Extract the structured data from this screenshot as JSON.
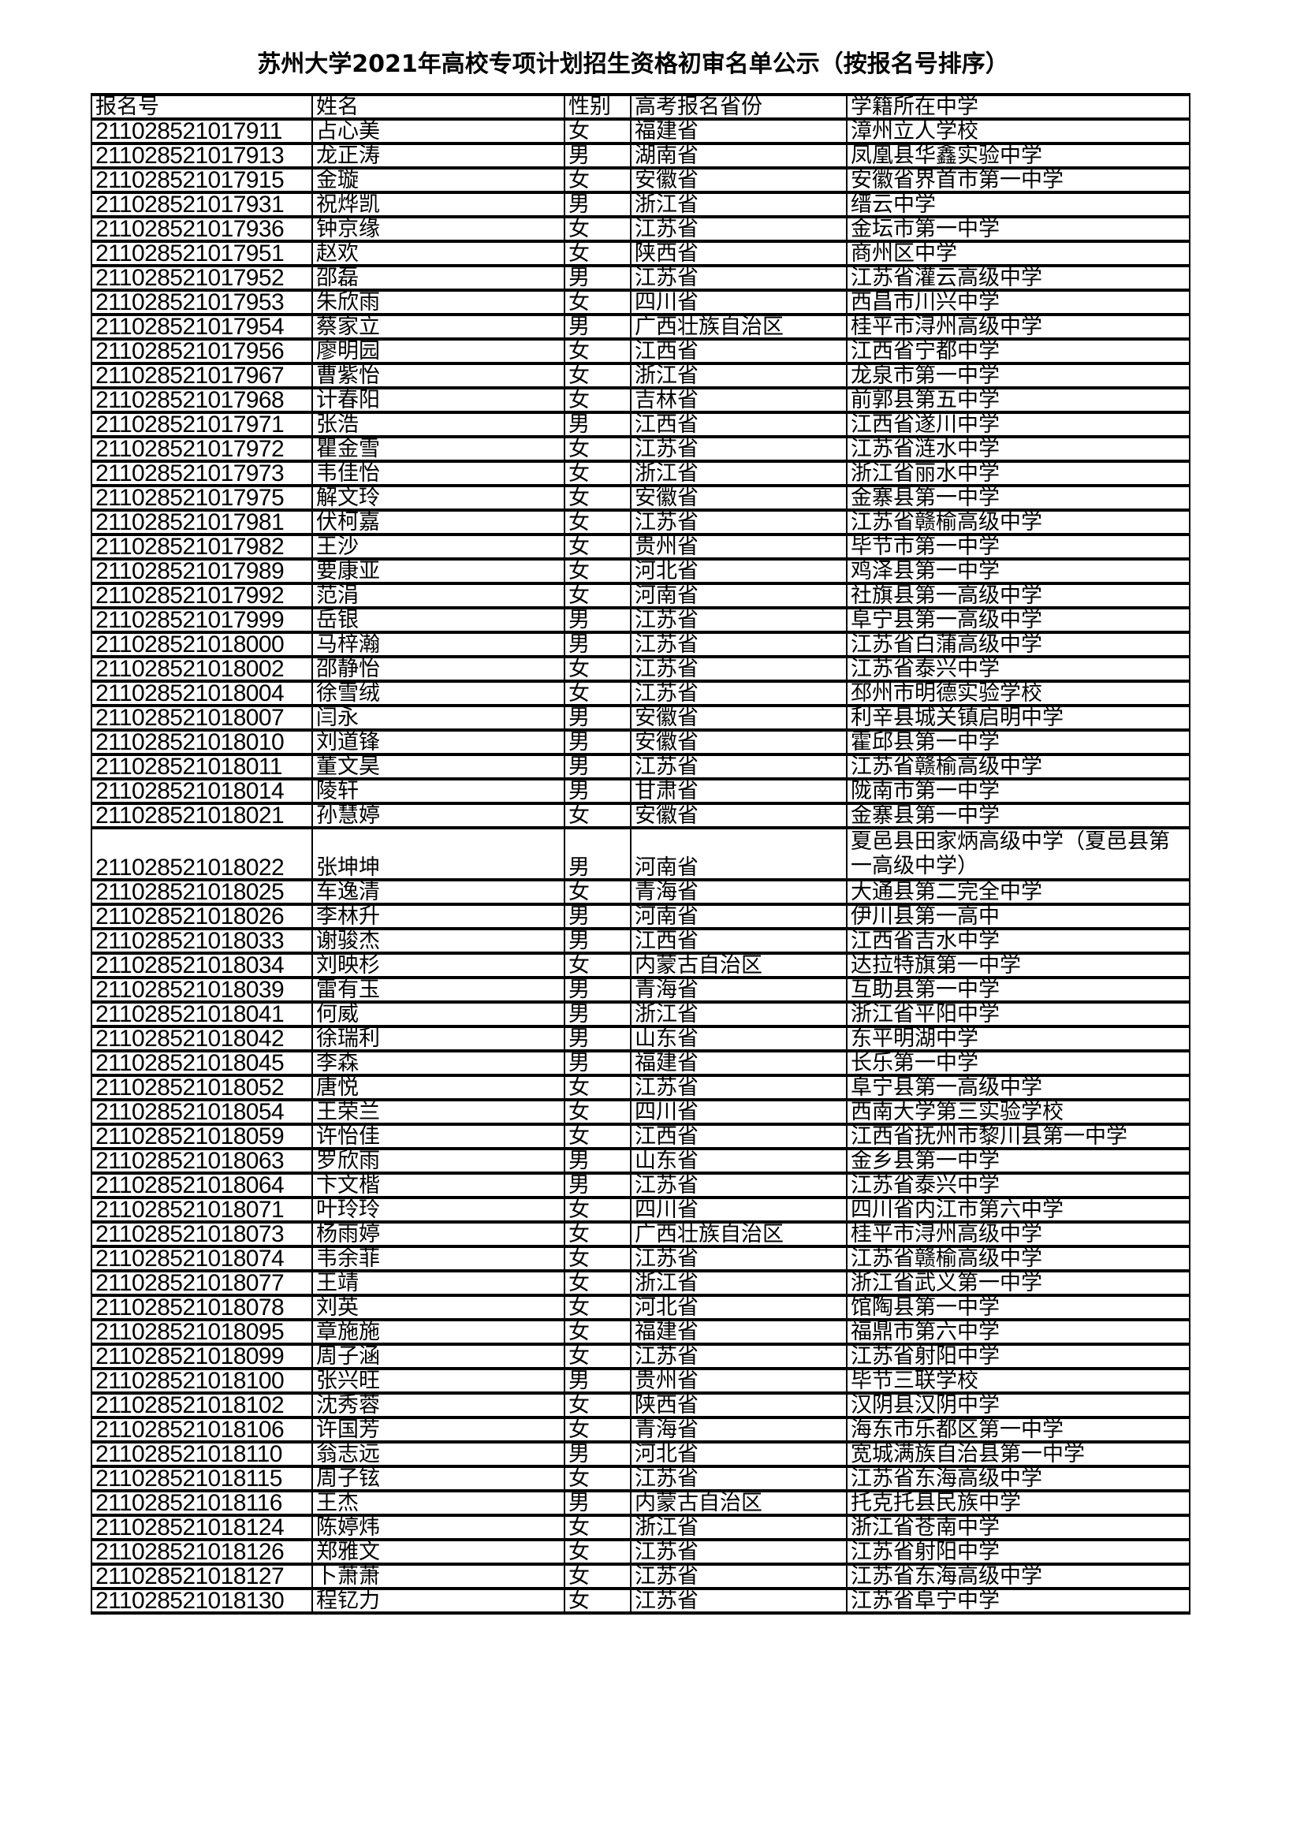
{
  "title": "苏州大学2021年高校专项计划招生资格初审名单公示（按报名号排序）",
  "columns": [
    "报名号",
    "姓名",
    "性别",
    "高考报名省份",
    "学籍所在中学"
  ],
  "rows": [
    [
      "211028521017911",
      "占心美",
      "女",
      "福建省",
      "漳州立人学校"
    ],
    [
      "211028521017913",
      "龙正涛",
      "男",
      "湖南省",
      "凤凰县华鑫实验中学"
    ],
    [
      "211028521017915",
      "金璇",
      "女",
      "安徽省",
      "安徽省界首市第一中学"
    ],
    [
      "211028521017931",
      "祝烨凯",
      "男",
      "浙江省",
      "缙云中学"
    ],
    [
      "211028521017936",
      "钟京缘",
      "女",
      "江苏省",
      "金坛市第一中学"
    ],
    [
      "211028521017951",
      "赵欢",
      "女",
      "陕西省",
      "商州区中学"
    ],
    [
      "211028521017952",
      "邵磊",
      "男",
      "江苏省",
      "江苏省灌云高级中学"
    ],
    [
      "211028521017953",
      "朱欣雨",
      "女",
      "四川省",
      "西昌市川兴中学"
    ],
    [
      "211028521017954",
      "蔡家立",
      "男",
      "广西壮族自治区",
      "桂平市浔州高级中学"
    ],
    [
      "211028521017956",
      "廖明园",
      "女",
      "江西省",
      "江西省宁都中学"
    ],
    [
      "211028521017967",
      "曹紫怡",
      "女",
      "浙江省",
      "龙泉市第一中学"
    ],
    [
      "211028521017968",
      "计春阳",
      "女",
      "吉林省",
      "前郭县第五中学"
    ],
    [
      "211028521017971",
      "张浩",
      "男",
      "江西省",
      "江西省遂川中学"
    ],
    [
      "211028521017972",
      "瞿金雪",
      "女",
      "江苏省",
      "江苏省涟水中学"
    ],
    [
      "211028521017973",
      "韦佳怡",
      "女",
      "浙江省",
      "浙江省丽水中学"
    ],
    [
      "211028521017975",
      "解文玲",
      "女",
      "安徽省",
      "金寨县第一中学"
    ],
    [
      "211028521017981",
      "伏柯嘉",
      "女",
      "江苏省",
      "江苏省赣榆高级中学"
    ],
    [
      "211028521017982",
      "王沙",
      "女",
      "贵州省",
      "毕节市第一中学"
    ],
    [
      "211028521017989",
      "要康亚",
      "女",
      "河北省",
      "鸡泽县第一中学"
    ],
    [
      "211028521017992",
      "范涓",
      "女",
      "河南省",
      "社旗县第一高级中学"
    ],
    [
      "211028521017999",
      "岳银",
      "男",
      "江苏省",
      "阜宁县第一高级中学"
    ],
    [
      "211028521018000",
      "马梓瀚",
      "男",
      "江苏省",
      "江苏省白蒲高级中学"
    ],
    [
      "211028521018002",
      "邵静怡",
      "女",
      "江苏省",
      "江苏省泰兴中学"
    ],
    [
      "211028521018004",
      "徐雪绒",
      "女",
      "江苏省",
      "邳州市明德实验学校"
    ],
    [
      "211028521018007",
      "闫永",
      "男",
      "安徽省",
      "利辛县城关镇启明中学"
    ],
    [
      "211028521018010",
      "刘道锋",
      "男",
      "安徽省",
      "霍邱县第一中学"
    ],
    [
      "211028521018011",
      "董文昊",
      "男",
      "江苏省",
      "江苏省赣榆高级中学"
    ],
    [
      "211028521018014",
      "陵轩",
      "男",
      "甘肃省",
      "陇南市第一中学"
    ],
    [
      "211028521018021",
      "孙慧婷",
      "女",
      "安徽省",
      "金寨县第一中学"
    ],
    [
      "211028521018022",
      "张坤坤",
      "男",
      "河南省",
      "夏邑县田家炳高级中学（夏邑县第一高级中学）"
    ],
    [
      "211028521018025",
      "车逸清",
      "女",
      "青海省",
      "大通县第二完全中学"
    ],
    [
      "211028521018026",
      "李林升",
      "男",
      "河南省",
      "伊川县第一高中"
    ],
    [
      "211028521018033",
      "谢骏杰",
      "男",
      "江西省",
      "江西省吉水中学"
    ],
    [
      "211028521018034",
      "刘映杉",
      "女",
      "内蒙古自治区",
      "达拉特旗第一中学"
    ],
    [
      "211028521018039",
      "雷有玉",
      "男",
      "青海省",
      "互助县第一中学"
    ],
    [
      "211028521018041",
      "何威",
      "男",
      "浙江省",
      "浙江省平阳中学"
    ],
    [
      "211028521018042",
      "徐瑞利",
      "男",
      "山东省",
      "东平明湖中学"
    ],
    [
      "211028521018045",
      "李森",
      "男",
      "福建省",
      "长乐第一中学"
    ],
    [
      "211028521018052",
      "唐悦",
      "女",
      "江苏省",
      "阜宁县第一高级中学"
    ],
    [
      "211028521018054",
      "王荣兰",
      "女",
      "四川省",
      "西南大学第三实验学校"
    ],
    [
      "211028521018059",
      "许怡佳",
      "女",
      "江西省",
      "江西省抚州市黎川县第一中学"
    ],
    [
      "211028521018063",
      "罗欣雨",
      "男",
      "山东省",
      "金乡县第一中学"
    ],
    [
      "211028521018064",
      "卞文楷",
      "男",
      "江苏省",
      "江苏省泰兴中学"
    ],
    [
      "211028521018071",
      "叶玲玲",
      "女",
      "四川省",
      "四川省内江市第六中学"
    ],
    [
      "211028521018073",
      "杨雨婷",
      "女",
      "广西壮族自治区",
      "桂平市浔州高级中学"
    ],
    [
      "211028521018074",
      "韦余菲",
      "女",
      "江苏省",
      "江苏省赣榆高级中学"
    ],
    [
      "211028521018077",
      "王靖",
      "女",
      "浙江省",
      "浙江省武义第一中学"
    ],
    [
      "211028521018078",
      "刘英",
      "女",
      "河北省",
      "馆陶县第一中学"
    ],
    [
      "211028521018095",
      "章施施",
      "女",
      "福建省",
      "福鼎市第六中学"
    ],
    [
      "211028521018099",
      "周子涵",
      "女",
      "江苏省",
      "江苏省射阳中学"
    ],
    [
      "211028521018100",
      "张兴旺",
      "男",
      "贵州省",
      "毕节三联学校"
    ],
    [
      "211028521018102",
      "沈秀蓉",
      "女",
      "陕西省",
      "汉阴县汉阴中学"
    ],
    [
      "211028521018106",
      "许国芳",
      "女",
      "青海省",
      "海东市乐都区第一中学"
    ],
    [
      "211028521018110",
      "翁志远",
      "男",
      "河北省",
      "宽城满族自治县第一中学"
    ],
    [
      "211028521018115",
      "周子铉",
      "女",
      "江苏省",
      "江苏省东海高级中学"
    ],
    [
      "211028521018116",
      "王杰",
      "男",
      "内蒙古自治区",
      "托克托县民族中学"
    ],
    [
      "211028521018124",
      "陈婷炜",
      "女",
      "浙江省",
      "浙江省苍南中学"
    ],
    [
      "211028521018126",
      "郑雅文",
      "女",
      "江苏省",
      "江苏省射阳中学"
    ],
    [
      "211028521018127",
      "卜萧萧",
      "女",
      "江苏省",
      "江苏省东海高级中学"
    ],
    [
      "211028521018130",
      "程钇力",
      "女",
      "江苏省",
      "江苏省阜宁中学"
    ]
  ]
}
